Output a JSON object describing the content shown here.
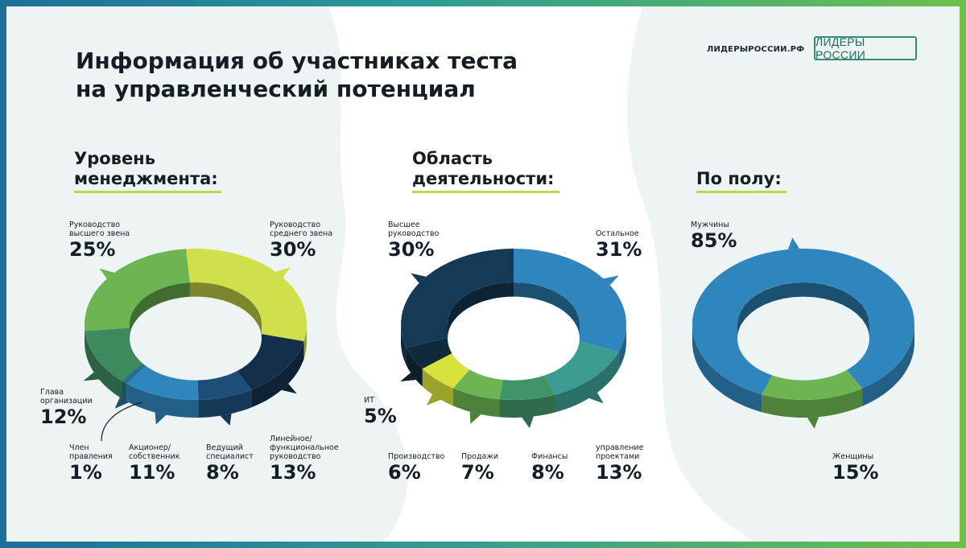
{
  "header": {
    "title_line1": "Информация об участниках теста",
    "title_line2": "на управленческий потенциал",
    "site": "ЛИДЕРЫРОССИИ.РФ",
    "logo_text": "ЛИДЕРЫ РОССИИ"
  },
  "colors": {
    "lime": "#cfe04a",
    "green": "#6cb552",
    "teal_green": "#3d8a5e",
    "blue": "#2f86bd",
    "navy": "#163a55",
    "dark_navy": "#0f2a3a",
    "teal": "#3c9b91",
    "yellow_green": "#d7e23c"
  },
  "chart_data": [
    {
      "type": "pie",
      "title_line1": "Уровень",
      "title_line2": "менеджмента:",
      "slices": [
        {
          "label": "Руководство среднего звена",
          "label_lines": [
            "Руководство",
            "среднего звена"
          ],
          "value": 30,
          "pct": "30%",
          "color": "#cfe04a"
        },
        {
          "label": "Линейное/функциональное руководство",
          "label_lines": [
            "Линейное/",
            "функциональное",
            "руководство"
          ],
          "value": 13,
          "pct": "13%",
          "color": "#12304a"
        },
        {
          "label": "Ведущий специалист",
          "label_lines": [
            "Ведущий",
            "специалист"
          ],
          "value": 8,
          "pct": "8%",
          "color": "#1d4e78"
        },
        {
          "label": "Акционер/собственник",
          "label_lines": [
            "Акционер/",
            "собственник"
          ],
          "value": 11,
          "pct": "11%",
          "color": "#2f86bd"
        },
        {
          "label": "Член правления",
          "label_lines": [
            "Член",
            "правления"
          ],
          "value": 1,
          "pct": "1%",
          "color": "#2a6e8a"
        },
        {
          "label": "Глава организации",
          "label_lines": [
            "Глава",
            "организации"
          ],
          "value": 12,
          "pct": "12%",
          "color": "#3d8a5e"
        },
        {
          "label": "Руководство высшего звена",
          "label_lines": [
            "Руководство",
            "высшего звена"
          ],
          "value": 25,
          "pct": "25%",
          "color": "#6cb552"
        }
      ]
    },
    {
      "type": "pie",
      "title_line1": "Область",
      "title_line2": "деятельности:",
      "slices": [
        {
          "label": "Остальное",
          "label_lines": [
            "Остальное"
          ],
          "value": 31,
          "pct": "31%",
          "color": "#2f86bd"
        },
        {
          "label": "управление проектами",
          "label_lines": [
            "управление",
            "проектами"
          ],
          "value": 13,
          "pct": "13%",
          "color": "#3c9b91"
        },
        {
          "label": "Финансы",
          "label_lines": [
            "Финансы"
          ],
          "value": 8,
          "pct": "8%",
          "color": "#3f9468"
        },
        {
          "label": "Продажи",
          "label_lines": [
            "Продажи"
          ],
          "value": 7,
          "pct": "7%",
          "color": "#6cb552"
        },
        {
          "label": "Производство",
          "label_lines": [
            "Производство"
          ],
          "value": 6,
          "pct": "6%",
          "color": "#d7e23c"
        },
        {
          "label": "ИТ",
          "label_lines": [
            "ИТ"
          ],
          "value": 5,
          "pct": "5%",
          "color": "#0f2a3a"
        },
        {
          "label": "Высшее руководство",
          "label_lines": [
            "Высшее",
            "руководство"
          ],
          "value": 30,
          "pct": "30%",
          "color": "#163a55"
        }
      ]
    },
    {
      "type": "pie",
      "title_line1": "По полу:",
      "slices": [
        {
          "label": "Женщины",
          "label_lines": [
            "Женщины"
          ],
          "value": 15,
          "pct": "15%",
          "color": "#6cb552"
        },
        {
          "label": "Мужчины",
          "label_lines": [
            "Мужчины"
          ],
          "value": 85,
          "pct": "85%",
          "color": "#2f86bd"
        }
      ]
    }
  ]
}
